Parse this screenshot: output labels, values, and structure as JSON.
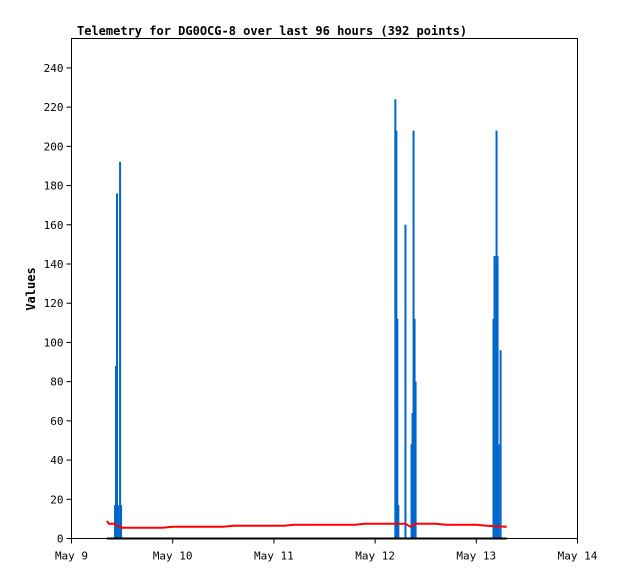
{
  "chart_data": {
    "type": "line",
    "title": "Telemetry for DG0OCG-8 over last 96 hours (392 points)",
    "xlabel": "",
    "ylabel": "Values",
    "x_ticks": [
      "May 9",
      "May 10",
      "May 11",
      "May 12",
      "May 13",
      "May 14"
    ],
    "y_ticks": [
      "0",
      "20",
      "40",
      "60",
      "80",
      "100",
      "120",
      "140",
      "160",
      "180",
      "200",
      "220",
      "240"
    ],
    "xlim": [
      0,
      5
    ],
    "ylim": [
      0,
      255
    ],
    "grid": false,
    "legend": "none",
    "series": [
      {
        "color": "#0066cc",
        "style": "spikes",
        "points": [
          [
            0.43,
            17
          ],
          [
            0.44,
            88
          ],
          [
            0.45,
            176
          ],
          [
            0.46,
            17
          ],
          [
            0.48,
            192
          ],
          [
            0.49,
            17
          ],
          [
            3.2,
            224
          ],
          [
            3.21,
            208
          ],
          [
            3.22,
            112
          ],
          [
            3.23,
            17
          ],
          [
            3.3,
            160
          ],
          [
            3.36,
            48
          ],
          [
            3.37,
            64
          ],
          [
            3.38,
            208
          ],
          [
            3.39,
            112
          ],
          [
            3.4,
            80
          ],
          [
            4.17,
            112
          ],
          [
            4.18,
            144
          ],
          [
            4.2,
            208
          ],
          [
            4.21,
            144
          ],
          [
            4.22,
            48
          ],
          [
            4.24,
            96
          ]
        ]
      },
      {
        "color": "#ff0000",
        "style": "line",
        "points": [
          [
            0.35,
            9
          ],
          [
            0.37,
            7.5
          ],
          [
            0.42,
            7.5
          ],
          [
            0.5,
            5.5
          ],
          [
            0.9,
            5.5
          ],
          [
            1.0,
            6
          ],
          [
            1.5,
            6
          ],
          [
            1.6,
            6.5
          ],
          [
            2.1,
            6.5
          ],
          [
            2.2,
            7
          ],
          [
            2.8,
            7
          ],
          [
            2.9,
            7.5
          ],
          [
            3.3,
            7.5
          ],
          [
            3.35,
            6
          ],
          [
            3.4,
            7.5
          ],
          [
            3.6,
            7.5
          ],
          [
            3.7,
            7
          ],
          [
            4.0,
            7
          ],
          [
            4.1,
            6.5
          ],
          [
            4.3,
            6
          ]
        ]
      },
      {
        "color": "#000000",
        "style": "line",
        "points": [
          [
            0.35,
            0
          ],
          [
            4.3,
            0
          ]
        ]
      }
    ]
  }
}
